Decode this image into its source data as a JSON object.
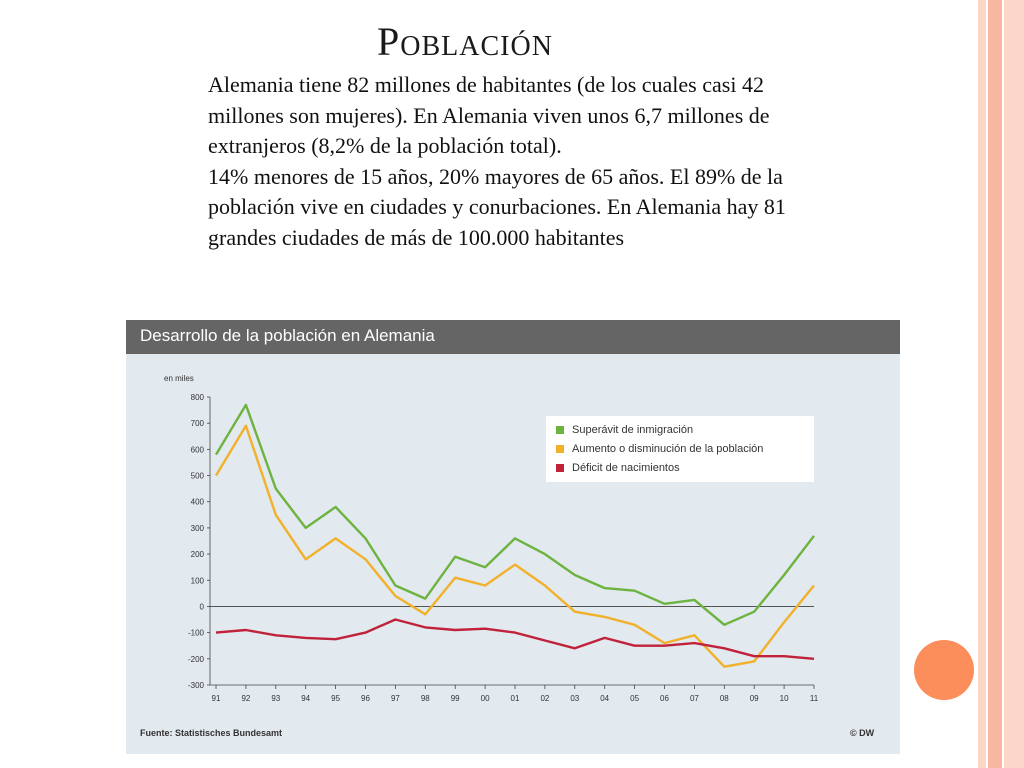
{
  "slide": {
    "title": "Población",
    "paragraphs": [
      "Alemania tiene 82 millones de habitantes (de los cuales casi 42 millones son mujeres). En Alemania viven unos 6,7 millones de extranjeros (8,2% de la población total).",
      "14% menores de 15 años, 20% mayores de 65 años. El 89% de la población vive en ciudades y conurbaciones. En Alemania hay 81 grandes ciudades de más de 100.000 habitantes"
    ],
    "colors": {
      "stripes": [
        "#fcd7c9",
        "#f7b7a1",
        "#fcd7c9"
      ],
      "dot": "#fb8e5a"
    }
  },
  "chart_data": {
    "type": "line",
    "title": "Desarrollo de la población en Alemania",
    "ylabel": "en miles",
    "source": "Fuente: Statistisches Bundesamt",
    "credit": "© DW",
    "categories": [
      "91",
      "92",
      "93",
      "94",
      "95",
      "96",
      "97",
      "98",
      "99",
      "00",
      "01",
      "02",
      "03",
      "04",
      "05",
      "06",
      "07",
      "08",
      "09",
      "10",
      "11"
    ],
    "ylim": [
      -300,
      800
    ],
    "yticks": [
      800,
      700,
      600,
      500,
      400,
      300,
      200,
      100,
      0,
      -100,
      -200,
      -300
    ],
    "grid": false,
    "legend_position": "top-right",
    "series": [
      {
        "name": "Superávit de inmigración",
        "color": "#6db33f",
        "values": [
          580,
          770,
          450,
          300,
          380,
          260,
          80,
          30,
          190,
          150,
          260,
          200,
          120,
          70,
          60,
          10,
          25,
          -70,
          -20,
          120,
          270
        ]
      },
      {
        "name": "Aumento o disminución de la población",
        "color": "#f1b12a",
        "values": [
          500,
          690,
          350,
          180,
          260,
          180,
          40,
          -30,
          110,
          80,
          160,
          80,
          -20,
          -40,
          -70,
          -140,
          -110,
          -230,
          -210,
          -60,
          80
        ]
      },
      {
        "name": "Déficit de nacimientos",
        "color": "#c0223a",
        "values": [
          -100,
          -90,
          -110,
          -120,
          -125,
          -100,
          -50,
          -80,
          -90,
          -85,
          -100,
          -130,
          -160,
          -120,
          -150,
          -150,
          -140,
          -160,
          -190,
          -190,
          -200
        ]
      }
    ]
  }
}
